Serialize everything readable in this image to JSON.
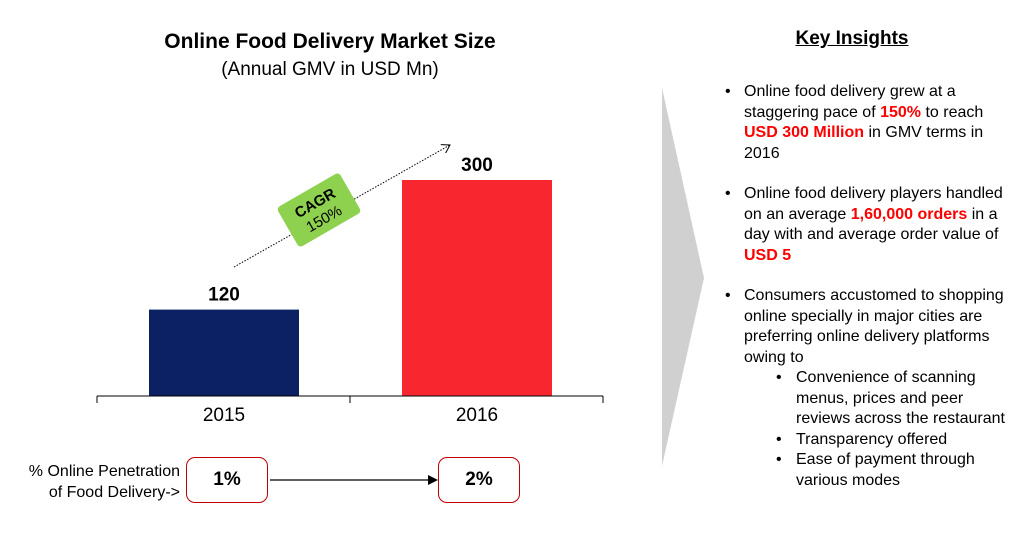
{
  "chart_data": {
    "type": "bar",
    "title": "Online Food Delivery Market Size",
    "subtitle": "(Annual GMV in USD Mn)",
    "categories": [
      "2015",
      "2016"
    ],
    "values": [
      120,
      300
    ],
    "colors": [
      "#0c2163",
      "#f7262f"
    ],
    "ylim": [
      0,
      300
    ],
    "grid": false,
    "annotations": {
      "cagr_label": "CAGR",
      "cagr_value": "150%",
      "cagr_color": "#8ed14f"
    }
  },
  "penetration": {
    "label_line1": "% Online Penetration",
    "label_line2": "of Food Delivery->",
    "values": [
      "1%",
      "2%"
    ],
    "box_border_color": "#c00000"
  },
  "insights": {
    "title": "Key Insights",
    "highlight_color": "#ff0000",
    "items": [
      {
        "segments": [
          {
            "text": "Online food delivery grew at a staggering pace of ",
            "hl": false
          },
          {
            "text": "150%",
            "hl": true
          },
          {
            "text": " to reach ",
            "hl": false
          },
          {
            "text": "USD 300 Million",
            "hl": true
          },
          {
            "text": " in GMV terms in 2016",
            "hl": false
          }
        ]
      },
      {
        "segments": [
          {
            "text": "Online food delivery players handled on an average ",
            "hl": false
          },
          {
            "text": "1,60,000 orders",
            "hl": true
          },
          {
            "text": " in a day with and average order value of ",
            "hl": false
          },
          {
            "text": "USD 5",
            "hl": true
          }
        ]
      },
      {
        "segments": [
          {
            "text": "Consumers accustomed to shopping online specially in major cities are preferring online delivery platforms owing to",
            "hl": false
          }
        ],
        "sub_items": [
          "Convenience of scanning menus, prices and peer reviews across the restaurant",
          "Transparency offered",
          "Ease of payment through various modes"
        ]
      }
    ]
  }
}
